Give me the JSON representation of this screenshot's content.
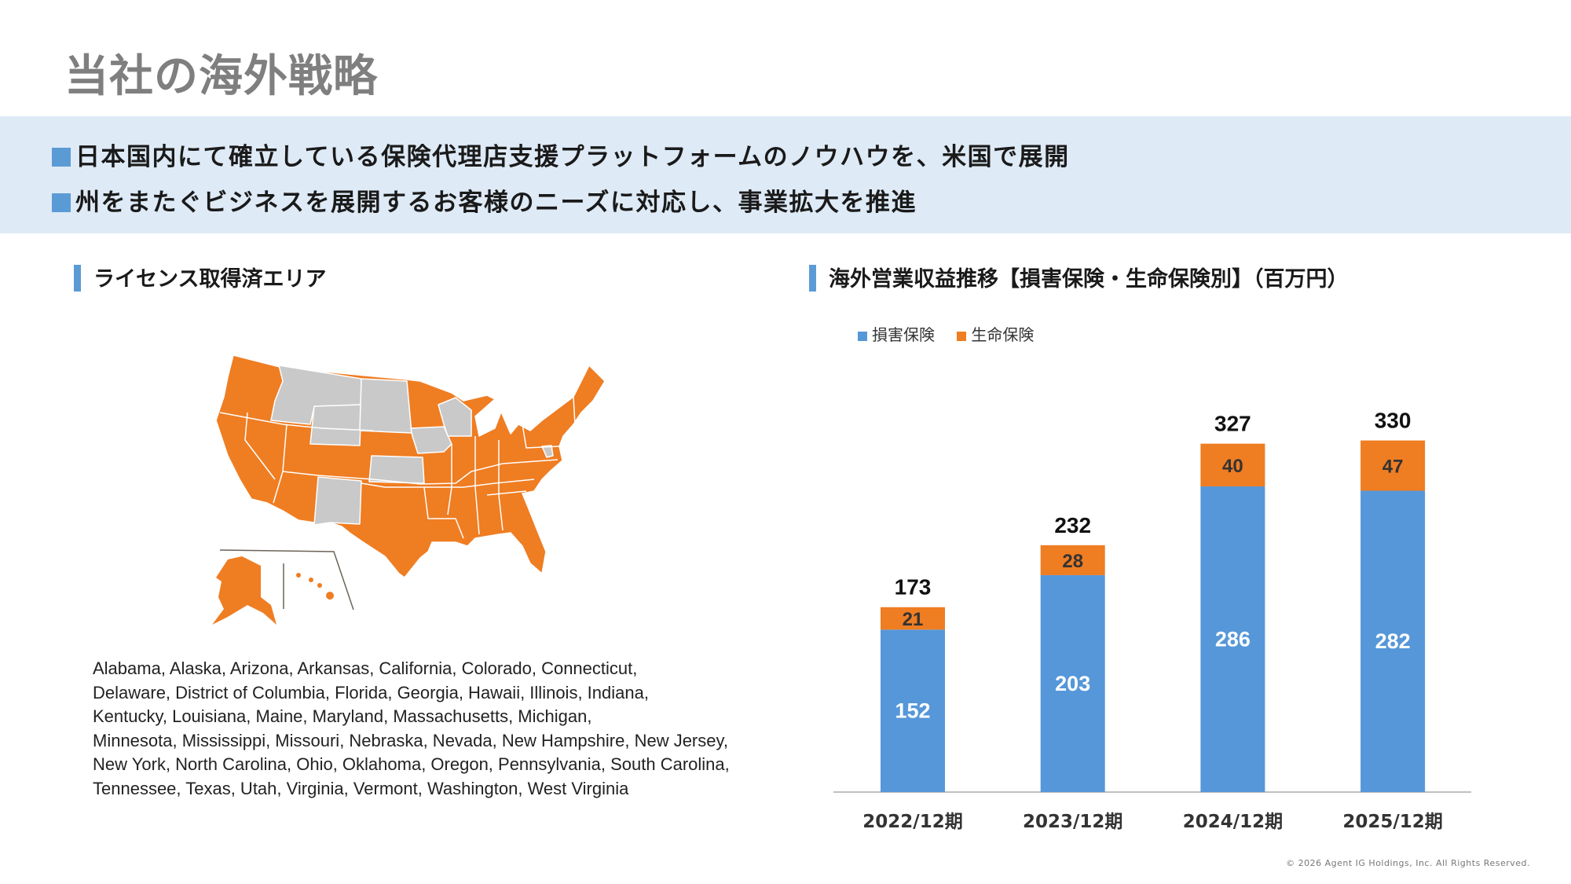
{
  "title": "当社の海外戦略",
  "bullets": [
    "日本国内にて確立している保険代理店支援プラットフォームのノウハウを、米国で展開",
    "州をまたぐビジネスを展開するお客様のニーズに対応し、事業拡大を推進"
  ],
  "left_section": {
    "heading": "ライセンス取得済エリア",
    "states_lines": [
      "Alabama,  Alaska,  Arizona,  Arkansas,  California,  Colorado,  Connecticut,",
      "Delaware,  District of Columbia,  Florida, Georgia,  Hawaii,  Illinois,  Indiana,",
      "Kentucky,  Louisiana,  Maine,  Maryland,  Massachusetts,  Michigan,",
      "Minnesota,  Mississippi,  Missouri,  Nebraska,  Nevada, New Hampshire, New Jersey,",
      "New York,  North Carolina,  Ohio,  Oklahoma,  Oregon,  Pennsylvania, South Carolina,",
      "Tennessee,  Texas, Utah,  Virginia,  Vermont, Washington, West Virginia"
    ],
    "map_colors": {
      "licensed": "#ef7d22",
      "unlicensed": "#c9c9c9"
    }
  },
  "right_section": {
    "heading": "海外営業収益推移【損害保険・生命保険別】（百万円）"
  },
  "chart_data": {
    "type": "bar",
    "stacked": true,
    "categories": [
      "2022/12期",
      "2023/12期",
      "2024/12期",
      "2025/12期"
    ],
    "series": [
      {
        "name": "損害保険",
        "values": [
          152,
          203,
          286,
          282
        ],
        "color": "#5597d9"
      },
      {
        "name": "生命保険",
        "values": [
          21,
          28,
          40,
          47
        ],
        "color": "#ef7d22"
      }
    ],
    "totals": [
      173,
      232,
      327,
      330
    ],
    "legend": "top-left",
    "ylim": [
      0,
      360
    ],
    "grid": false
  },
  "footer": "© 2026 Agent IG Holdings, Inc. All Rights Reserved."
}
